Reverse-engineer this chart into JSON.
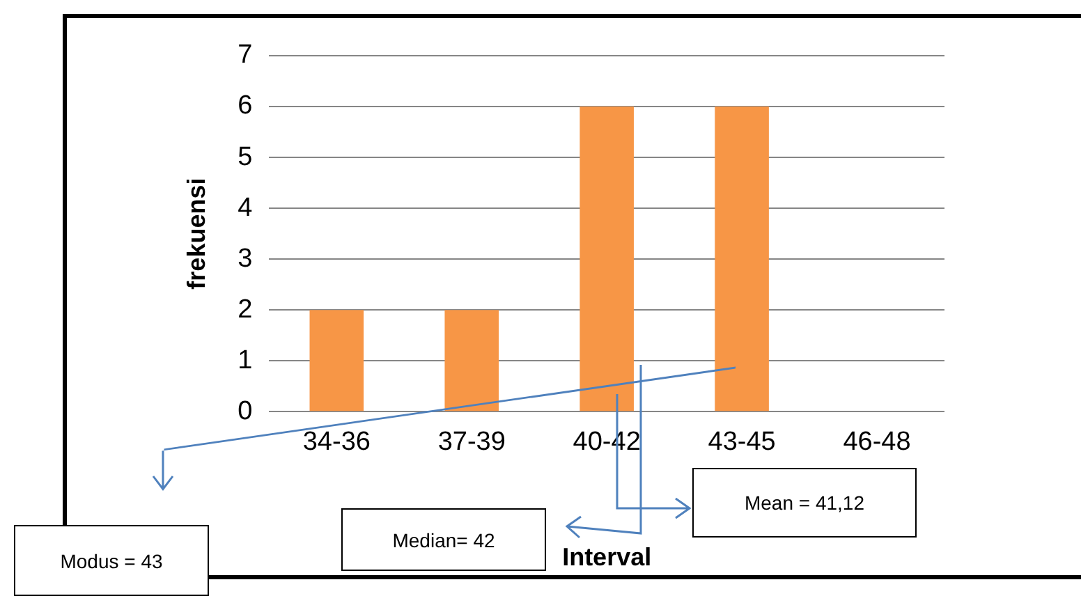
{
  "chart_data": {
    "type": "bar",
    "categories": [
      "34-36",
      "37-39",
      "40-42",
      "43-45",
      "46-48"
    ],
    "values": [
      2,
      2,
      6,
      6,
      0
    ],
    "color": "#f79646",
    "xlabel": "Interval",
    "ylabel": "frekuensi",
    "ylim": [
      0,
      7
    ],
    "yticks": [
      0,
      1,
      2,
      3,
      4,
      5,
      6,
      7
    ],
    "grid": "y",
    "legend": false,
    "annotations": [
      "Modus = 43",
      "Median= 42",
      "Mean = 41,12"
    ]
  }
}
